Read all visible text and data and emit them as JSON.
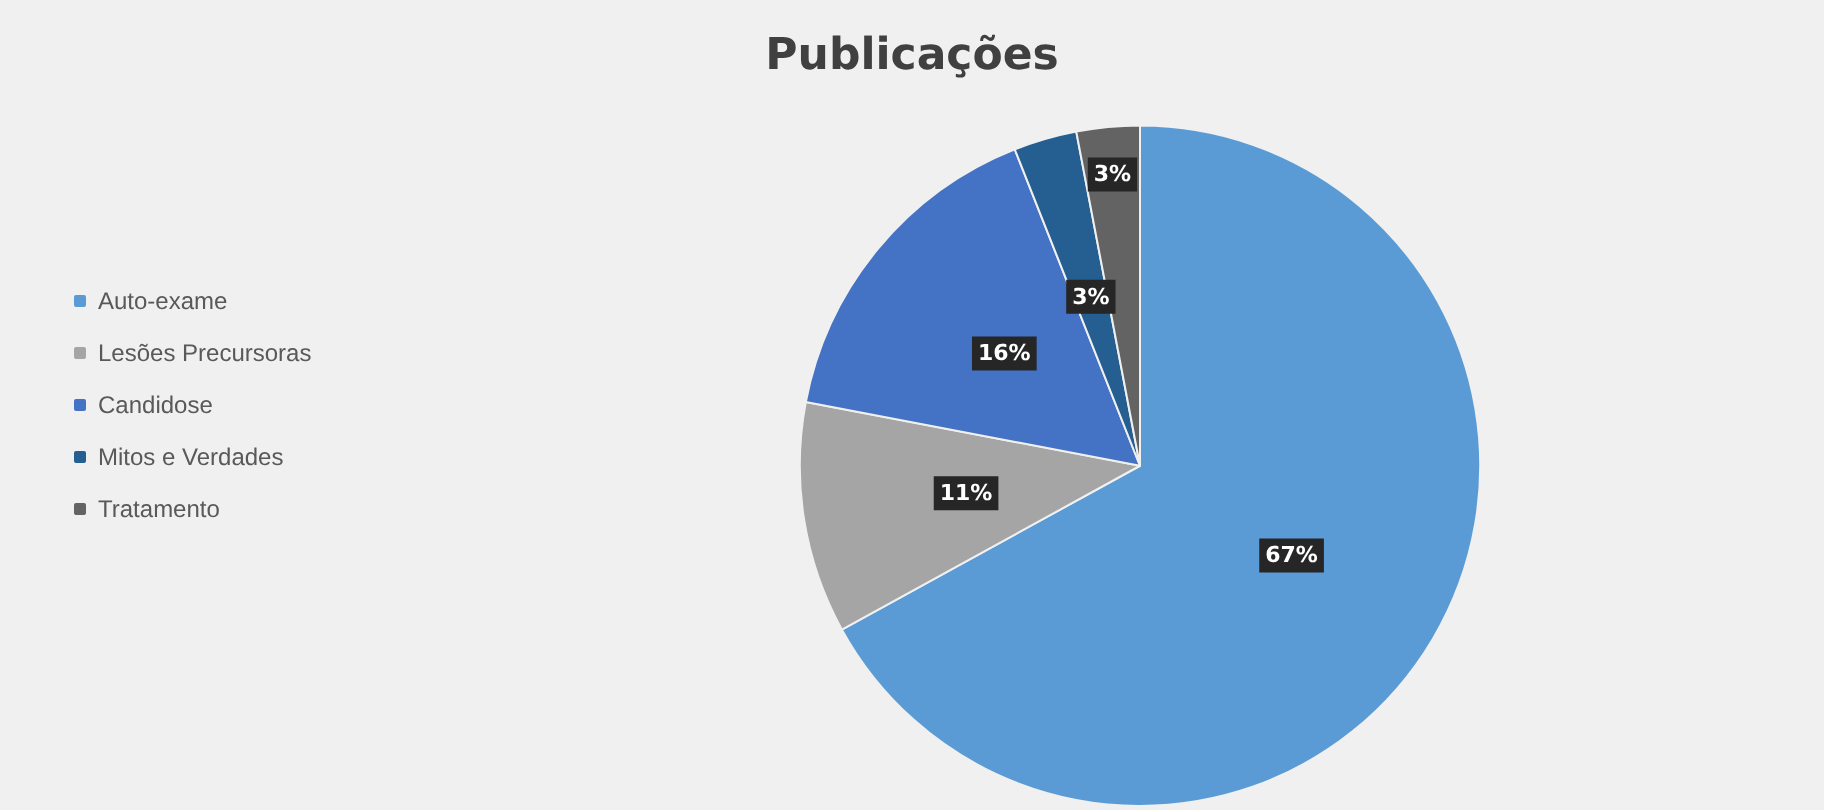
{
  "chart_data": {
    "type": "pie",
    "title": "Publicações",
    "categories": [
      "Auto-exame",
      "Lesões Precursoras",
      "Candidose",
      "Mitos e Verdades",
      "Tratamento"
    ],
    "values": [
      67,
      11,
      16,
      3,
      3
    ],
    "colors": [
      "#5b9bd5",
      "#a5a5a5",
      "#4472c4",
      "#255e91",
      "#636363"
    ],
    "value_labels": [
      "67%",
      "11%",
      "16%",
      "3%",
      "3%"
    ],
    "legend": "left"
  }
}
